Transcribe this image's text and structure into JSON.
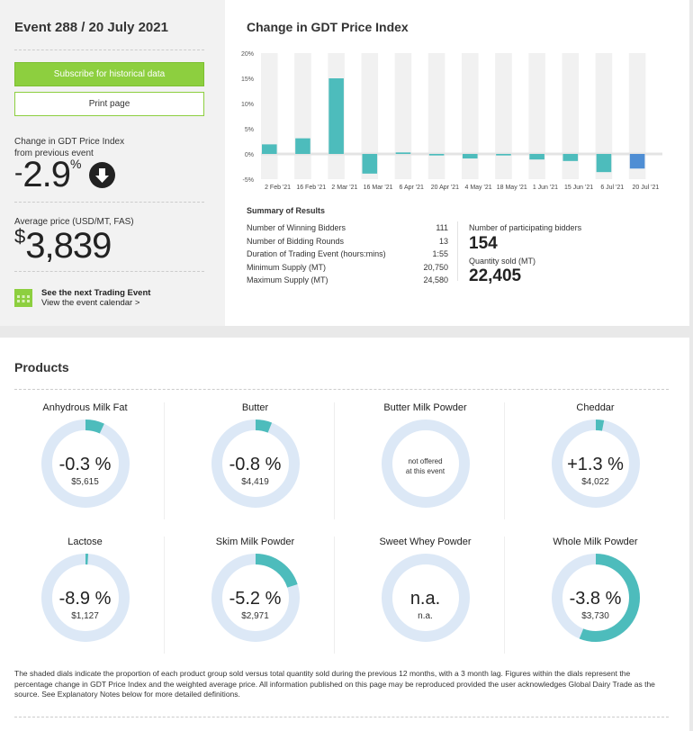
{
  "sidebar": {
    "title": "Event 288 / 20 July 2021",
    "subscribe_label": "Subscribe for historical data",
    "print_label": "Print page",
    "change_label_1": "Change in GDT Price Index",
    "change_label_2": "from previous event",
    "change_sign": "-",
    "change_value": "2.9",
    "change_unit": "%",
    "change_direction_icon": "arrow-down-circle-icon",
    "avg_label": "Average price (USD/MT, FAS)",
    "avg_currency": "$",
    "avg_value": "3,839",
    "calendar_icon": "calendar-icon",
    "next_event_label": "See the next Trading Event",
    "calendar_link": "View the event calendar >"
  },
  "chart_data": {
    "type": "bar",
    "title": "Change in GDT Price Index",
    "categories": [
      "2 Feb '21",
      "16 Feb '21",
      "2 Mar '21",
      "16 Mar '21",
      "6 Apr '21",
      "20 Apr '21",
      "4 May '21",
      "18 May '21",
      "1 Jun '21",
      "15 Jun '21",
      "6 Jul '21",
      "20 Jul '21"
    ],
    "values": [
      1.9,
      3.1,
      15.0,
      -3.9,
      0.3,
      -0.3,
      -0.9,
      -0.3,
      -1.1,
      -1.4,
      -3.6,
      -2.9
    ],
    "yticks": [
      "20%",
      "15%",
      "10%",
      "5%",
      "0%",
      "-5%"
    ],
    "ylim": [
      -5,
      20
    ],
    "colors": {
      "bar": "#4dbcbc",
      "current": "#4f8ed4"
    }
  },
  "summary": {
    "heading": "Summary of Results",
    "rows": [
      {
        "label": "Number of Winning Bidders",
        "value": "111"
      },
      {
        "label": "Number of Bidding Rounds",
        "value": "13"
      },
      {
        "label": "Duration of Trading Event (hours:mins)",
        "value": "1:55"
      },
      {
        "label": "Minimum Supply (MT)",
        "value": "20,750"
      },
      {
        "label": "Maximum Supply (MT)",
        "value": "24,580"
      }
    ],
    "participating_label": "Number of participating bidders",
    "participating_value": "154",
    "quantity_label": "Quantity sold (MT)",
    "quantity_value": "22,405"
  },
  "products": {
    "heading": "Products",
    "items": [
      {
        "name": "Anhydrous Milk Fat",
        "change": "-0.3 %",
        "price": "$5,615",
        "share": 0.07
      },
      {
        "name": "Butter",
        "change": "-0.8 %",
        "price": "$4,419",
        "share": 0.06
      },
      {
        "name": "Butter Milk Powder",
        "note1": "not offered",
        "note2": "at this event",
        "share": 0
      },
      {
        "name": "Cheddar",
        "change": "+1.3 %",
        "price": "$4,022",
        "share": 0.03
      },
      {
        "name": "Lactose",
        "change": "-8.9 %",
        "price": "$1,127",
        "share": 0.01
      },
      {
        "name": "Skim Milk Powder",
        "change": "-5.2 %",
        "price": "$2,971",
        "share": 0.2
      },
      {
        "name": "Sweet Whey Powder",
        "change": "n.a.",
        "price": "n.a.",
        "share": 0
      },
      {
        "name": "Whole Milk Powder",
        "change": "-3.8 %",
        "price": "$3,730",
        "share": 0.56
      }
    ],
    "colors": {
      "dial_track": "#dce8f6",
      "dial_fill": "#4dbcbc"
    },
    "footnote": "The shaded dials indicate the proportion of each product group sold versus total quantity sold during the previous 12 months, with a 3 month lag. Figures within the dials represent the percentage change in GDT Price Index and the weighted average price. All information published on this page may be reproduced provided the user acknowledges Global Dairy Trade as the source. See Explanatory Notes below for more detailed definitions."
  }
}
